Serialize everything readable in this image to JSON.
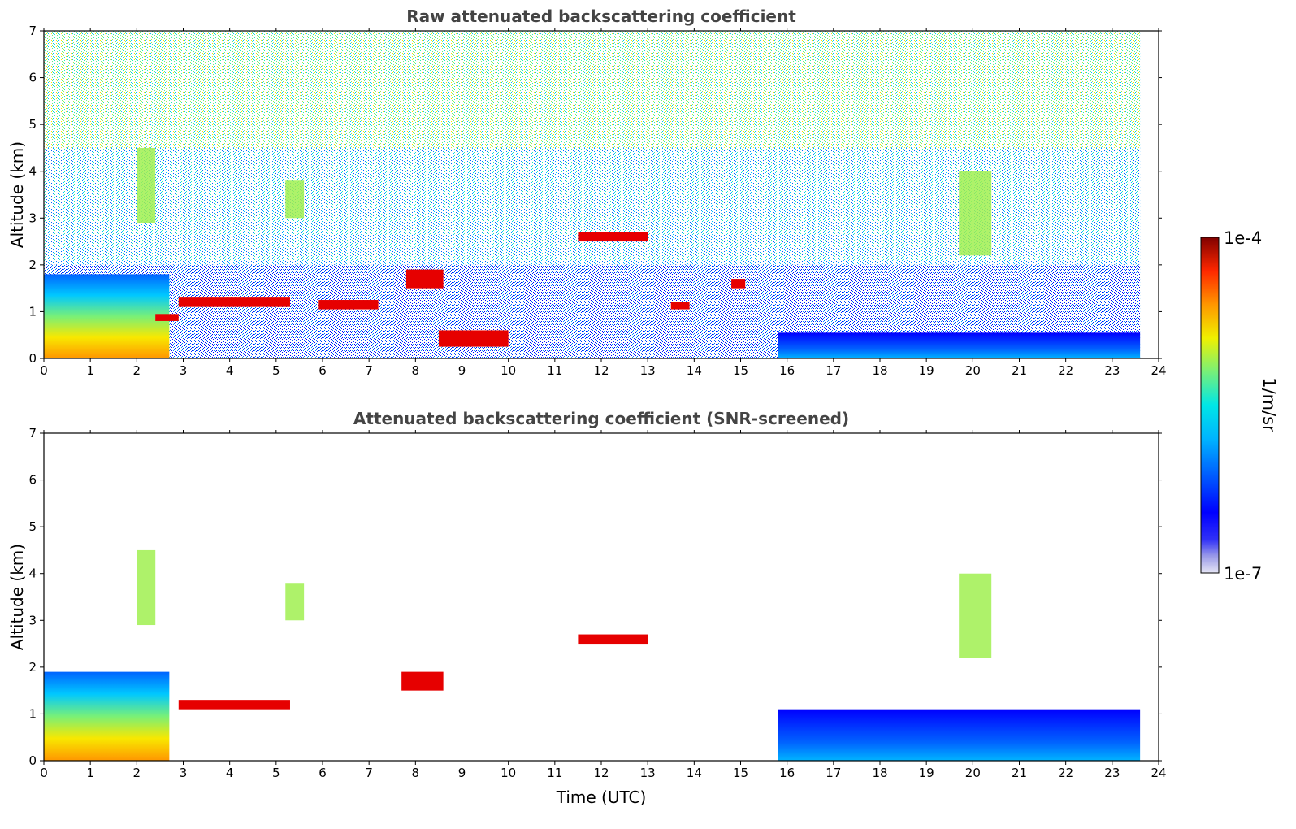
{
  "chart_data": [
    {
      "type": "heatmap",
      "title": "Raw attenuated backscattering coefficient",
      "xlabel": "",
      "ylabel": "Altitude (km)",
      "xlim": [
        0,
        24
      ],
      "ylim": [
        0,
        7
      ],
      "xticks": [
        0,
        1,
        2,
        3,
        4,
        5,
        6,
        7,
        8,
        9,
        10,
        11,
        12,
        13,
        14,
        15,
        16,
        17,
        18,
        19,
        20,
        21,
        22,
        23,
        24
      ],
      "yticks": [
        0,
        1,
        2,
        3,
        4,
        5,
        6,
        7
      ],
      "data_end_time": 23.6,
      "layers": [
        {
          "feature": "aerosol plumes",
          "t_start": 0.0,
          "t_end": 2.7,
          "alt_base": 0.0,
          "alt_top": 1.8
        },
        {
          "feature": "cloud",
          "t_start": 2.4,
          "t_end": 2.9,
          "alt_base": 0.8,
          "alt_top": 0.95
        },
        {
          "feature": "cloud",
          "t_start": 2.9,
          "t_end": 5.3,
          "alt_base": 1.1,
          "alt_top": 1.3
        },
        {
          "feature": "cloud",
          "t_start": 5.9,
          "t_end": 7.2,
          "alt_base": 1.05,
          "alt_top": 1.25
        },
        {
          "feature": "cloud",
          "t_start": 7.8,
          "t_end": 8.6,
          "alt_base": 1.5,
          "alt_top": 1.9
        },
        {
          "feature": "cloud",
          "t_start": 8.5,
          "t_end": 10.0,
          "alt_base": 0.25,
          "alt_top": 0.6
        },
        {
          "feature": "cloud",
          "t_start": 11.5,
          "t_end": 13.0,
          "alt_base": 2.5,
          "alt_top": 2.7
        },
        {
          "feature": "cloud",
          "t_start": 13.5,
          "t_end": 13.9,
          "alt_base": 1.05,
          "alt_top": 1.2
        },
        {
          "feature": "cloud",
          "t_start": 14.8,
          "t_end": 15.1,
          "alt_base": 1.5,
          "alt_top": 1.7
        },
        {
          "feature": "elevated aerosol",
          "t_start": 2.0,
          "t_end": 2.4,
          "alt_base": 2.9,
          "alt_top": 4.5
        },
        {
          "feature": "elevated aerosol",
          "t_start": 5.2,
          "t_end": 5.6,
          "alt_base": 3.0,
          "alt_top": 3.8
        },
        {
          "feature": "elevated aerosol",
          "t_start": 19.7,
          "t_end": 20.4,
          "alt_base": 2.2,
          "alt_top": 4.0
        },
        {
          "feature": "boundary layer",
          "t_start": 15.8,
          "t_end": 23.6,
          "alt_base": 0.0,
          "alt_top": 0.55
        }
      ]
    },
    {
      "type": "heatmap",
      "title": "Attenuated backscattering coefficient (SNR-screened)",
      "xlabel": "Time (UTC)",
      "ylabel": "Altitude (km)",
      "xlim": [
        0,
        24
      ],
      "ylim": [
        0,
        7
      ],
      "xticks": [
        0,
        1,
        2,
        3,
        4,
        5,
        6,
        7,
        8,
        9,
        10,
        11,
        12,
        13,
        14,
        15,
        16,
        17,
        18,
        19,
        20,
        21,
        22,
        23,
        24
      ],
      "yticks": [
        0,
        1,
        2,
        3,
        4,
        5,
        6,
        7
      ],
      "data_end_time": 23.6,
      "layers": [
        {
          "feature": "aerosol plumes",
          "t_start": 0.0,
          "t_end": 2.7,
          "alt_base": 0.0,
          "alt_top": 1.9
        },
        {
          "feature": "cloud",
          "t_start": 2.9,
          "t_end": 5.3,
          "alt_base": 1.1,
          "alt_top": 1.3
        },
        {
          "feature": "cloud",
          "t_start": 7.7,
          "t_end": 8.6,
          "alt_base": 1.5,
          "alt_top": 1.9
        },
        {
          "feature": "cloud",
          "t_start": 11.5,
          "t_end": 13.0,
          "alt_base": 2.5,
          "alt_top": 2.7
        },
        {
          "feature": "elevated aerosol",
          "t_start": 2.0,
          "t_end": 2.4,
          "alt_base": 2.9,
          "alt_top": 4.5
        },
        {
          "feature": "elevated aerosol",
          "t_start": 5.2,
          "t_end": 5.6,
          "alt_base": 3.0,
          "alt_top": 3.8
        },
        {
          "feature": "elevated aerosol",
          "t_start": 19.7,
          "t_end": 20.4,
          "alt_base": 2.2,
          "alt_top": 4.0
        },
        {
          "feature": "boundary layer",
          "t_start": 15.8,
          "t_end": 23.6,
          "alt_base": 0.0,
          "alt_top": 1.1
        }
      ]
    }
  ],
  "colorbar": {
    "label": "1/m/sr",
    "max_label": "1e-4",
    "min_label": "1e-7",
    "scale": "log",
    "range": [
      1e-07,
      0.0001
    ],
    "colors": [
      "#e6e6f5",
      "#c2c2ee",
      "#9a9ae8",
      "#6464f0",
      "#0000ff",
      "#0032ff",
      "#0064ff",
      "#0096ff",
      "#00c8ff",
      "#00e8e0",
      "#28f0b0",
      "#64f080",
      "#a0f050",
      "#d0f030",
      "#f8e800",
      "#ffb400",
      "#ff7800",
      "#ff3c00",
      "#e60000",
      "#b40000",
      "#800000"
    ]
  }
}
